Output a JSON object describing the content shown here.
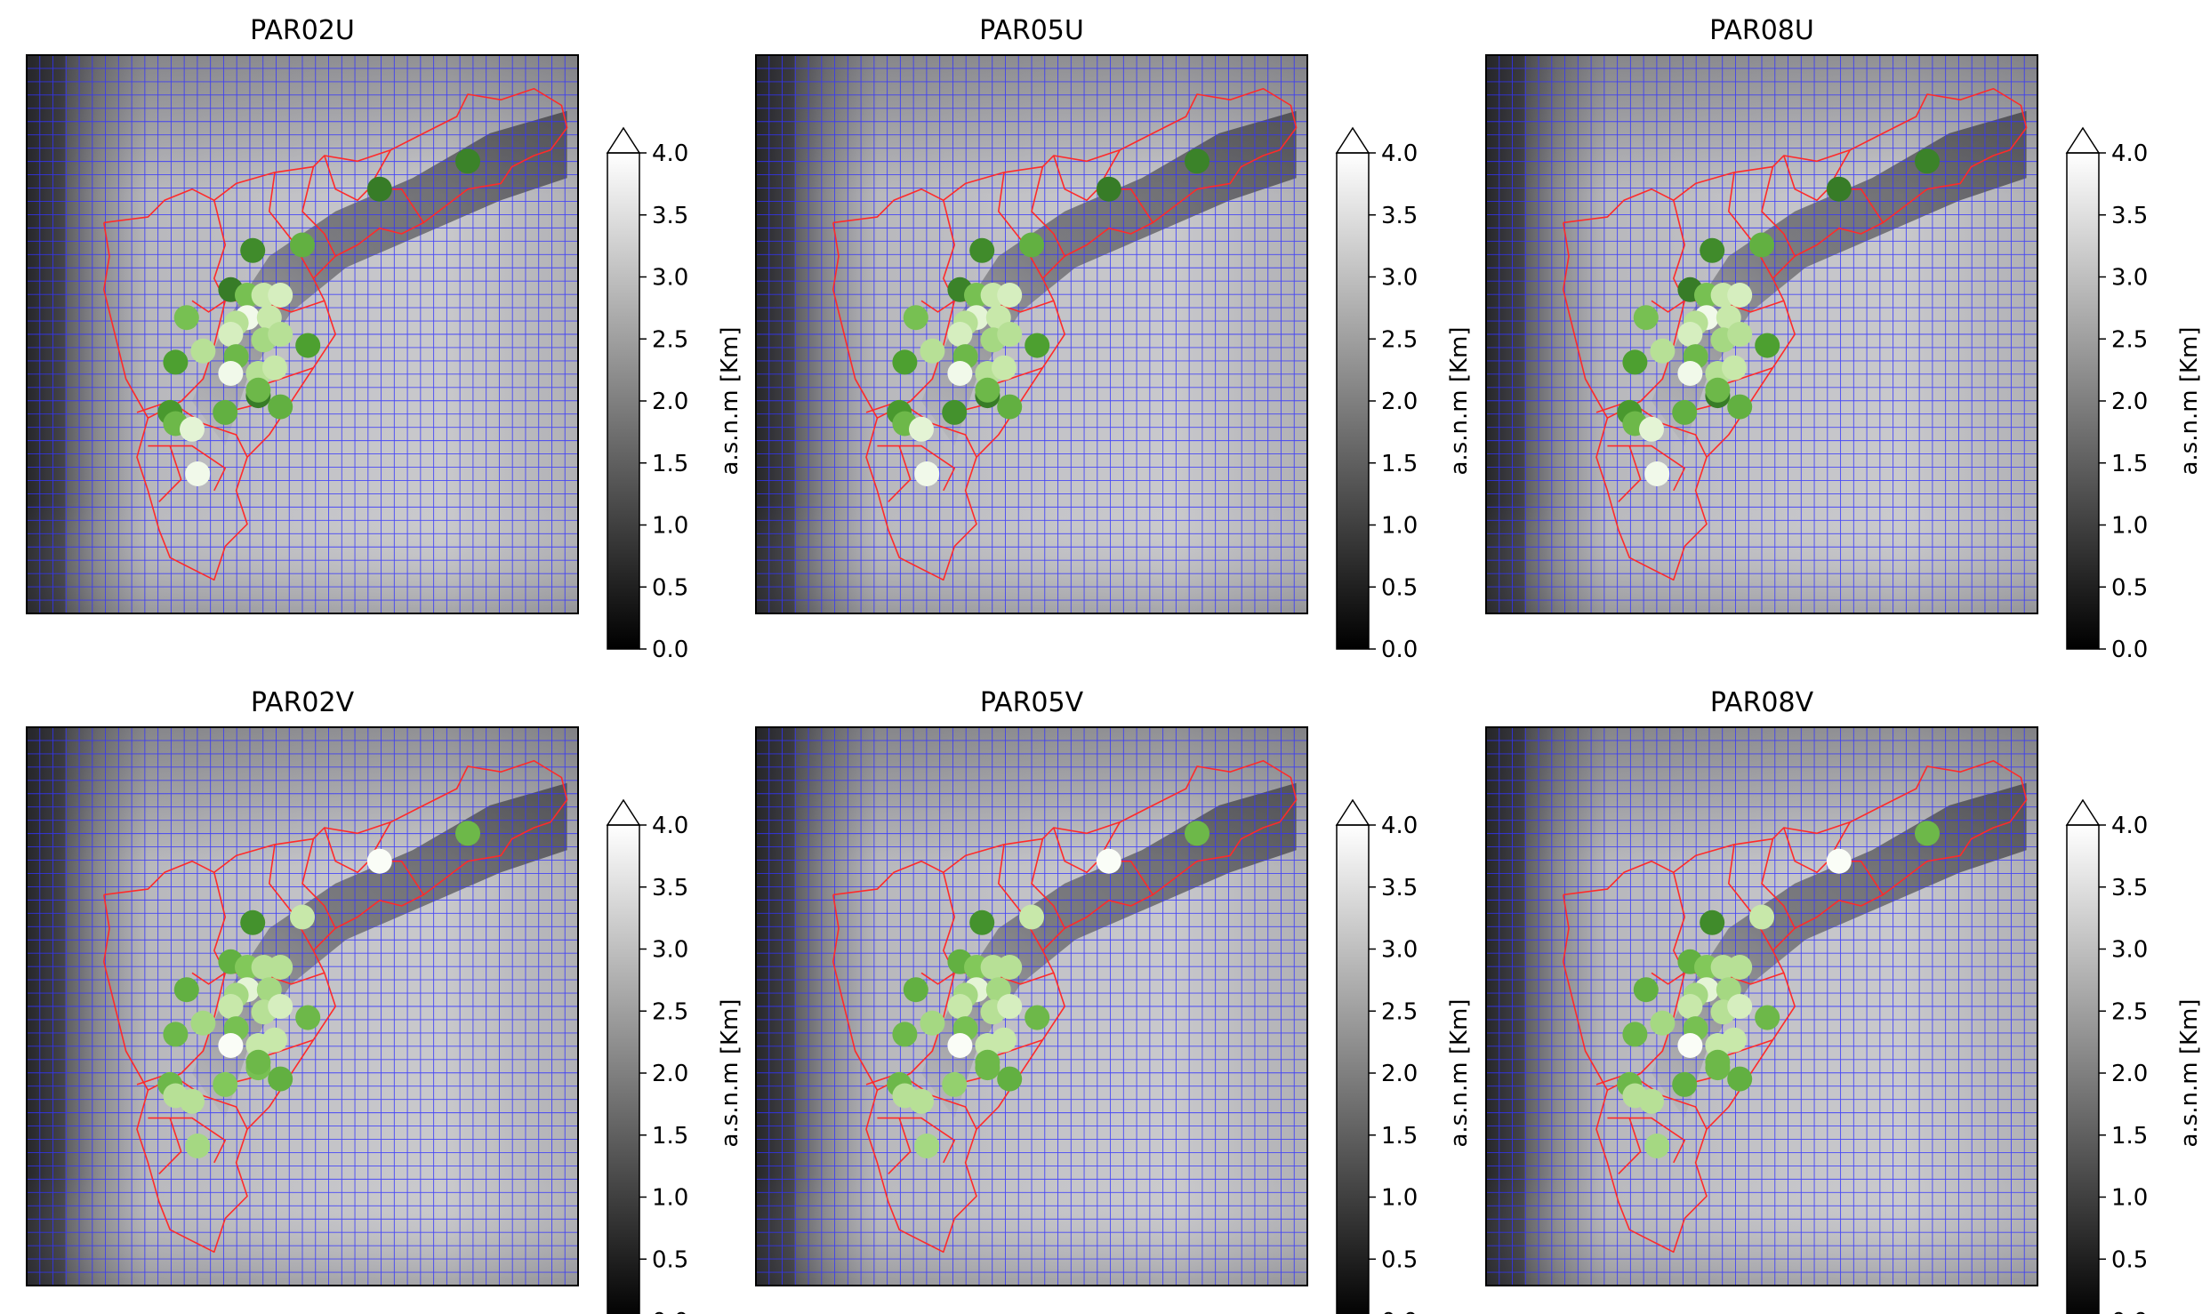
{
  "figure": {
    "colorbar": {
      "label": "a.s.n.m [Km]",
      "ticks": [
        "0.0",
        "0.5",
        "1.0",
        "1.5",
        "2.0",
        "2.5",
        "3.0",
        "3.5",
        "4.0"
      ],
      "range": [
        0,
        4
      ],
      "extend": "max",
      "colormap": "gray"
    },
    "map_style": {
      "grid_color": "#3333ff",
      "boundary_color": "#ff2a2a",
      "marker_colormap": "green-to-white"
    }
  },
  "chart_data": [
    {
      "type": "scatter",
      "title": "PAR02U",
      "marker_values": [
        0.15,
        0.1,
        0.2,
        0.45,
        0.1,
        0.55,
        0.8,
        0.85,
        0.95,
        0.75,
        0.8,
        0.55,
        0.85,
        0.7,
        0.75,
        0.35,
        0.35,
        0.75,
        0.5,
        0.95,
        0.75,
        0.8,
        0.1,
        0.45,
        0.3,
        0.5,
        0.9,
        0.95,
        0.5,
        0.45
      ]
    },
    {
      "type": "scatter",
      "title": "PAR05U",
      "marker_values": [
        0.15,
        0.1,
        0.2,
        0.45,
        0.15,
        0.55,
        0.8,
        0.85,
        0.9,
        0.75,
        0.8,
        0.55,
        0.85,
        0.7,
        0.75,
        0.35,
        0.35,
        0.75,
        0.5,
        0.95,
        0.75,
        0.8,
        0.1,
        0.25,
        0.3,
        0.5,
        0.9,
        0.95,
        0.5,
        0.45
      ]
    },
    {
      "type": "scatter",
      "title": "PAR08U",
      "marker_values": [
        0.15,
        0.1,
        0.2,
        0.45,
        0.1,
        0.55,
        0.8,
        0.85,
        0.95,
        0.75,
        0.8,
        0.55,
        0.85,
        0.7,
        0.75,
        0.35,
        0.35,
        0.75,
        0.5,
        0.95,
        0.75,
        0.8,
        0.1,
        0.45,
        0.3,
        0.5,
        0.9,
        0.95,
        0.5,
        0.45
      ]
    },
    {
      "type": "scatter",
      "title": "PAR02V",
      "marker_values": [
        0.5,
        0.98,
        0.25,
        0.8,
        0.45,
        0.6,
        0.75,
        0.75,
        0.9,
        0.7,
        0.7,
        0.45,
        0.8,
        0.75,
        0.85,
        0.5,
        0.5,
        0.7,
        0.55,
        0.98,
        0.8,
        0.8,
        0.55,
        0.6,
        0.5,
        0.75,
        0.75,
        0.7,
        0.5,
        0.45
      ]
    },
    {
      "type": "scatter",
      "title": "PAR05V",
      "marker_values": [
        0.5,
        0.98,
        0.25,
        0.8,
        0.45,
        0.6,
        0.75,
        0.75,
        0.9,
        0.7,
        0.7,
        0.45,
        0.8,
        0.75,
        0.85,
        0.5,
        0.5,
        0.7,
        0.55,
        0.98,
        0.8,
        0.8,
        0.5,
        0.65,
        0.5,
        0.75,
        0.75,
        0.7,
        0.5,
        0.45
      ]
    },
    {
      "type": "scatter",
      "title": "PAR08V",
      "marker_values": [
        0.5,
        0.98,
        0.2,
        0.8,
        0.45,
        0.6,
        0.75,
        0.75,
        0.9,
        0.7,
        0.7,
        0.45,
        0.8,
        0.75,
        0.85,
        0.5,
        0.5,
        0.7,
        0.55,
        0.98,
        0.8,
        0.8,
        0.5,
        0.45,
        0.5,
        0.75,
        0.75,
        0.7,
        0.5,
        0.45
      ]
    }
  ]
}
